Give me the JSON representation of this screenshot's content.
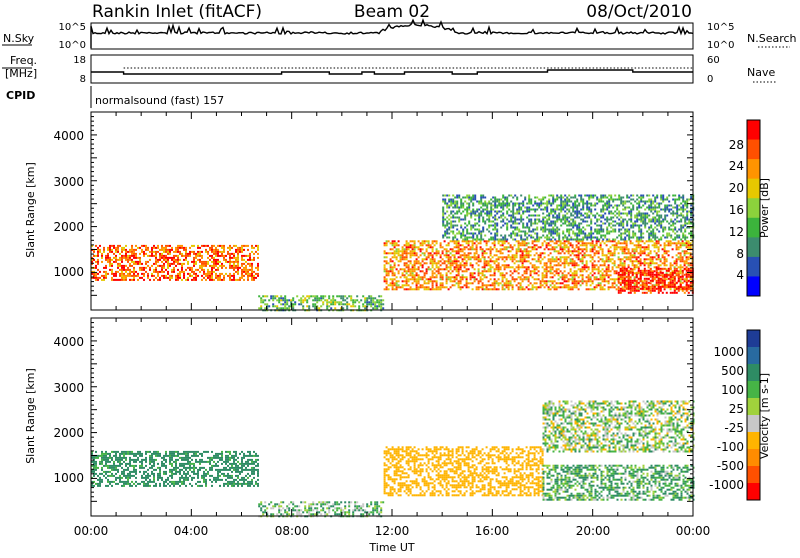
{
  "header": {
    "station": "Rankin Inlet (fitACF)",
    "beam": "Beam 02",
    "date": "08/Oct/2010"
  },
  "noise_panel": {
    "left_label": "N.Sky",
    "right_label": "N.Search",
    "left_ticks": [
      "10^5",
      "10^0"
    ],
    "right_ticks": [
      "10^5",
      "10^0"
    ]
  },
  "freq_panel": {
    "left_label_1": "Freq.",
    "left_label_2": "[MHz]",
    "left_ticks": [
      "18",
      "8"
    ],
    "right_label": "Nave",
    "right_ticks": [
      "60",
      "0"
    ]
  },
  "cpid": {
    "label": "CPID",
    "value": "normalsound (fast) 157"
  },
  "power_panel": {
    "ylabel": "Slant Range [km]",
    "yticks": [
      "4000",
      "3000",
      "2000",
      "1000"
    ],
    "colorbar_label": "Power [dB]",
    "colorbar_ticks": [
      "28",
      "24",
      "20",
      "16",
      "12",
      "8",
      "4"
    ],
    "colors": [
      "#ff0000",
      "#ff5000",
      "#ff9400",
      "#e6c800",
      "#8cd23c",
      "#3cb43c",
      "#3c8c6e",
      "#2850b4",
      "#0000ff"
    ]
  },
  "velocity_panel": {
    "ylabel": "Slant Range [km]",
    "yticks": [
      "4000",
      "3000",
      "2000",
      "1000"
    ],
    "colorbar_label": "Velocity [m s-1]",
    "colorbar_ticks": [
      "1000",
      "500",
      "100",
      "25",
      "-25",
      "-100",
      "-500",
      "-1000"
    ],
    "colors": [
      "#1e3c96",
      "#286aa0",
      "#2e8c64",
      "#46b446",
      "#a0d23c",
      "#c8c8c8",
      "#ffb400",
      "#ff8c00",
      "#ff5000",
      "#ff0000"
    ]
  },
  "xaxis": {
    "label": "Time UT",
    "ticks": [
      "00:00",
      "04:00",
      "08:00",
      "12:00",
      "16:00",
      "20:00",
      "00:00"
    ]
  },
  "chart_data": [
    {
      "type": "heatmap",
      "title": "Rankin Inlet (fitACF) Beam 02 08/Oct/2010",
      "xlabel": "Time UT",
      "ylabel": "Slant Range [km]",
      "x_range": [
        "00:00",
        "24:00"
      ],
      "ylim": [
        180,
        4500
      ],
      "colorbar": "Power [dB]",
      "clim": [
        0,
        30
      ],
      "regions": [
        {
          "x": [
            "00:00",
            "06:40"
          ],
          "y": [
            850,
            1600
          ],
          "value": 24
        },
        {
          "x": [
            "06:40",
            "11:40"
          ],
          "y": [
            180,
            500
          ],
          "value": 12
        },
        {
          "x": [
            "11:40",
            "24:00"
          ],
          "y": [
            650,
            1700
          ],
          "value": 22
        },
        {
          "x": [
            "14:00",
            "24:00"
          ],
          "y": [
            1700,
            2700
          ],
          "value": 10
        },
        {
          "x": [
            "21:00",
            "24:00"
          ],
          "y": [
            550,
            1100
          ],
          "value": 28
        }
      ]
    },
    {
      "type": "heatmap",
      "title": "Rankin Inlet (fitACF) Beam 02 08/Oct/2010",
      "xlabel": "Time UT",
      "ylabel": "Slant Range [km]",
      "x_range": [
        "00:00",
        "24:00"
      ],
      "ylim": [
        180,
        4500
      ],
      "colorbar": "Velocity [m s-1]",
      "clim": [
        -1000,
        1000
      ],
      "regions": [
        {
          "x": [
            "00:00",
            "06:40"
          ],
          "y": [
            850,
            1600
          ],
          "value": 200
        },
        {
          "x": [
            "06:40",
            "11:40"
          ],
          "y": [
            180,
            500
          ],
          "value": 50
        },
        {
          "x": [
            "11:40",
            "18:00"
          ],
          "y": [
            650,
            1700
          ],
          "value": -300
        },
        {
          "x": [
            "18:00",
            "24:00"
          ],
          "y": [
            1600,
            2700
          ],
          "value": 0
        },
        {
          "x": [
            "18:00",
            "24:00"
          ],
          "y": [
            550,
            1300
          ],
          "value": 100
        }
      ]
    }
  ]
}
